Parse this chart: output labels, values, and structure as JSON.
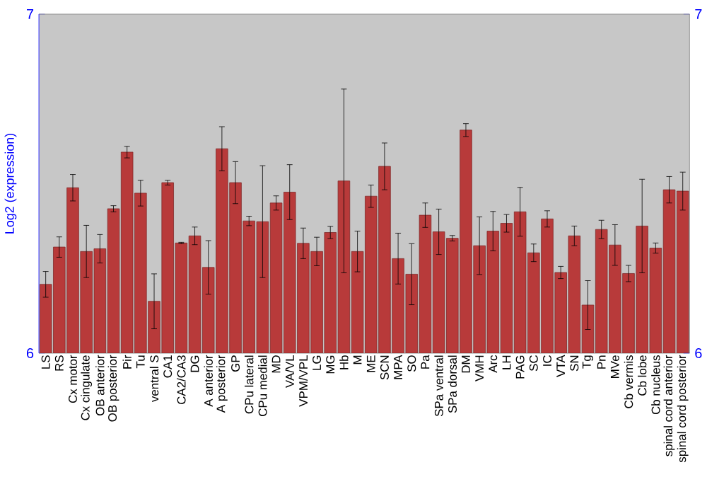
{
  "chart_data": {
    "type": "bar",
    "ylabel": "Log2 (expression)",
    "color": "#b83a3a",
    "categories": [
      "LS",
      "RS",
      "Cx motor",
      "Cx cingulate",
      "OB anterior",
      "OB posterior",
      "Pir",
      "Tu",
      "ventral S",
      "CA1",
      "CA2/CA3",
      "DG",
      "A anterior",
      "A posterior",
      "GP",
      "CPu lateral",
      "CPu medial",
      "MD",
      "VA/VL",
      "VPM/VPL",
      "LG",
      "MG",
      "Hb",
      "M",
      "ME",
      "SCN",
      "MPA",
      "SO",
      "Pa",
      "SPa ventral",
      "SPa dorsal",
      "DM",
      "VMH",
      "Arc",
      "LH",
      "PAG",
      "SC",
      "IC",
      "VTA",
      "SN",
      "Tg",
      "Pn",
      "MVe",
      "Cb vermis",
      "Cb lobe",
      "Cb nucleus",
      "spinal cord anterior",
      "spinal cord posterior"
    ],
    "values": [
      6.203,
      6.313,
      6.488,
      6.3,
      6.308,
      6.426,
      6.593,
      6.472,
      6.153,
      6.503,
      6.325,
      6.346,
      6.253,
      6.603,
      6.503,
      6.39,
      6.388,
      6.443,
      6.475,
      6.324,
      6.3,
      6.356,
      6.508,
      6.3,
      6.463,
      6.551,
      6.279,
      6.233,
      6.407,
      6.358,
      6.339,
      6.658,
      6.317,
      6.36,
      6.383,
      6.417,
      6.296,
      6.396,
      6.238,
      6.346,
      6.142,
      6.365,
      6.319,
      6.235,
      6.375,
      6.31,
      6.482,
      6.478
    ],
    "errors": [
      0.038,
      0.03,
      0.039,
      0.077,
      0.042,
      0.009,
      0.017,
      0.038,
      0.081,
      0.007,
      0.002,
      0.026,
      0.079,
      0.065,
      0.062,
      0.014,
      0.165,
      0.021,
      0.081,
      0.045,
      0.042,
      0.018,
      0.271,
      0.06,
      0.033,
      0.069,
      0.075,
      0.09,
      0.036,
      0.067,
      0.008,
      0.019,
      0.085,
      0.058,
      0.026,
      0.072,
      0.026,
      0.024,
      0.018,
      0.029,
      0.072,
      0.027,
      0.06,
      0.024,
      0.138,
      0.015,
      0.039,
      0.056
    ],
    "ylim": [
      6,
      7
    ],
    "yticks": [
      6,
      7
    ],
    "y2lim": [
      6,
      7
    ],
    "y2ticks": [
      6,
      7
    ]
  }
}
